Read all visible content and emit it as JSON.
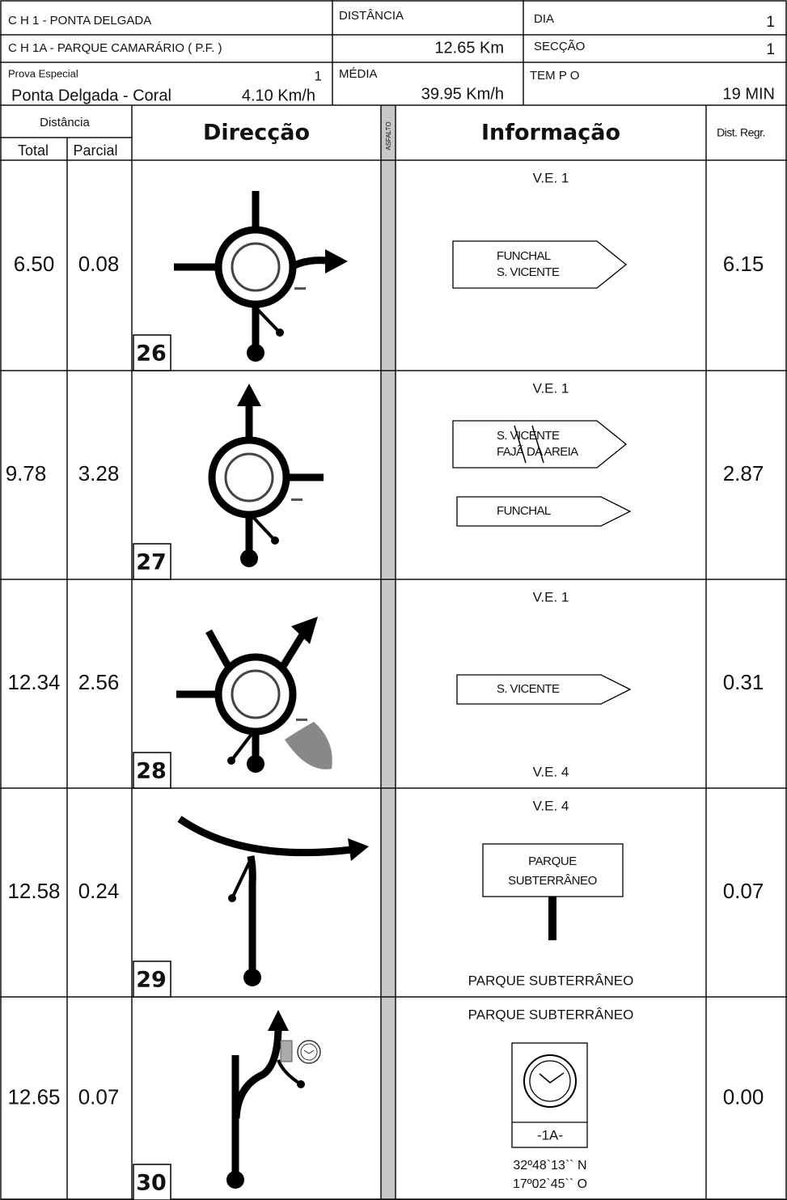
{
  "header": {
    "stage": "C H 1 -  PONTA DELGADA",
    "section_line": "C H 1A -  PARQUE CAMARÁRIO ( P.F. )",
    "special_label": "Prova Especial",
    "special_number": "1",
    "special_name": "Ponta Delgada - Coral",
    "special_speed": "4.10 Km/h",
    "distance_label": "DISTÂNCIA",
    "distance_value": "12.65 Km",
    "average_label": "MÉDIA",
    "average_value": "39.95 Km/h",
    "day_label": "DIA",
    "day_value": "1",
    "section_label": "SECÇÃO",
    "section_value": "1",
    "time_label": "TEM P O",
    "time_value": "19  MIN"
  },
  "columns": {
    "distance": "Distância",
    "total": "Total",
    "partial": "Parcial",
    "direction": "Direcção",
    "surface": "ASFALTO",
    "information": "Informação",
    "countdown": "Dist. Regr."
  },
  "rows": [
    {
      "number": "26",
      "total": "6.50",
      "partial": "0.08",
      "top_note": "V.E. 1",
      "signs": [
        [
          "FUNCHAL",
          "S. VICENTE"
        ]
      ],
      "countdown": "6.15"
    },
    {
      "number": "27",
      "total": "9.78",
      "partial": "3.28",
      "top_note": "V.E. 1",
      "signs": [
        [
          "S. VICENTE",
          "FAJÃ DA AREIA"
        ],
        [
          "FUNCHAL"
        ]
      ],
      "countdown": "2.87"
    },
    {
      "number": "28",
      "total": "12.34",
      "partial": "2.56",
      "top_note": "V.E. 1",
      "signs": [
        [
          "S. VICENTE"
        ]
      ],
      "bottom_note": "V.E. 4",
      "countdown": "0.31"
    },
    {
      "number": "29",
      "total": "12.58",
      "partial": "0.24",
      "top_note": "V.E. 4",
      "board": [
        "PARQUE",
        "SUBTERRÂNEO"
      ],
      "bottom_note": "PARQUE SUBTERRÂNEO",
      "countdown": "0.07"
    },
    {
      "number": "30",
      "total": "12.65",
      "partial": "0.07",
      "top_note": "PARQUE SUBTERRÂNEO",
      "clock_label": "-1A-",
      "coordinates": [
        "32º48`13`` N",
        "17º02`45`` O"
      ],
      "countdown": "0.00"
    }
  ]
}
